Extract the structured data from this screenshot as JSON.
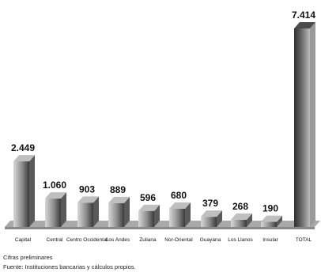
{
  "chart_data": {
    "type": "bar",
    "title": "",
    "xlabel": "",
    "ylabel": "",
    "categories": [
      "Capital",
      "Central",
      "Centro Occidental",
      "Los Andes",
      "Zuliana",
      "Nor-Oriental",
      "Guayana",
      "Los Llanos",
      "Insular",
      "TOTAL"
    ],
    "values": [
      2449,
      1060,
      903,
      889,
      596,
      680,
      379,
      268,
      190,
      7414
    ],
    "value_labels": [
      "2.449",
      "1.060",
      "903",
      "889",
      "596",
      "680",
      "379",
      "268",
      "190",
      "7.414"
    ],
    "ylim": [
      0,
      7414
    ],
    "grid": false,
    "style": "3d"
  },
  "notes": {
    "footnote": "Cifras preliminares",
    "source": "Fuente: Instituciones bancarias y cálculos propios."
  },
  "colors": {
    "floor": "#a9a9a9",
    "floor_edge": "#8a8a8a",
    "bar_light": "#d8d8d8",
    "bar_dark": "#3a3a3a",
    "text": "#111111"
  }
}
